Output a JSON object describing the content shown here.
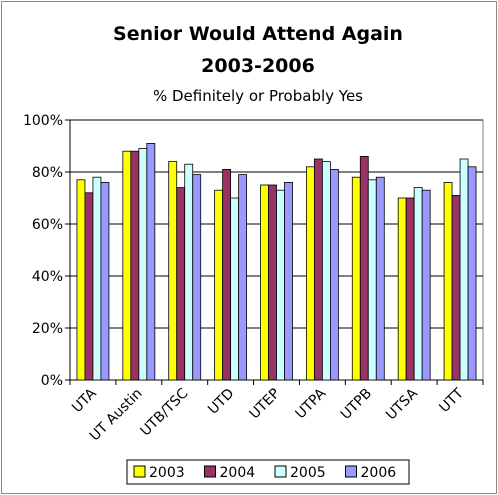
{
  "chart_data": {
    "type": "bar",
    "title": "Senior Would Attend Again",
    "subtitle_line1": "2003-2006",
    "subtitle_line2": "% Definitely or Probably Yes",
    "categories": [
      "UTA",
      "UT Austin",
      "UTB/TSC",
      "UTD",
      "UTEP",
      "UTPA",
      "UTPB",
      "UTSA",
      "UTT"
    ],
    "series": [
      {
        "name": "2003",
        "color": "#ffff00",
        "values": [
          77,
          88,
          84,
          73,
          75,
          82,
          78,
          70,
          76
        ]
      },
      {
        "name": "2004",
        "color": "#993366",
        "values": [
          72,
          88,
          74,
          81,
          75,
          85,
          86,
          70,
          71
        ]
      },
      {
        "name": "2005",
        "color": "#ccffff",
        "values": [
          78,
          89,
          83,
          70,
          73,
          84,
          77,
          74,
          85
        ]
      },
      {
        "name": "2006",
        "color": "#9999ff",
        "values": [
          76,
          91,
          79,
          79,
          76,
          81,
          78,
          73,
          82
        ]
      }
    ],
    "y_ticks": [
      "0%",
      "20%",
      "40%",
      "60%",
      "80%",
      "100%"
    ],
    "ylim": [
      0,
      100
    ],
    "grid": true,
    "legend_position": "bottom"
  }
}
